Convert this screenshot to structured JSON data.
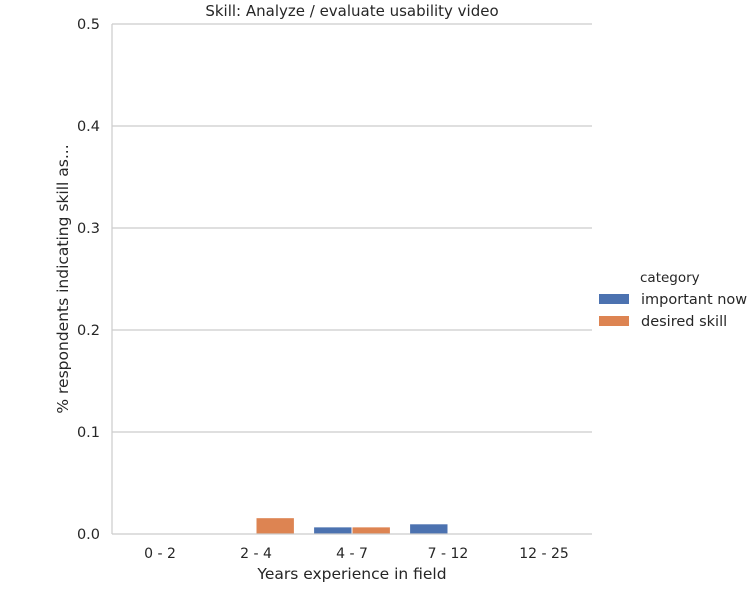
{
  "chart_data": {
    "type": "bar",
    "title": "Skill: Analyze / evaluate usability video",
    "xlabel": "Years experience in field",
    "ylabel": "% respondents indicating skill as...",
    "categories": [
      "0 - 2",
      "2 - 4",
      "4 - 7",
      "7 - 12",
      "12 - 25"
    ],
    "series": [
      {
        "name": "important now",
        "color": "#4c72b0",
        "values": [
          0.0,
          0.0,
          0.007,
          0.01,
          0.0
        ]
      },
      {
        "name": "desired skill",
        "color": "#dd8452",
        "values": [
          0.0,
          0.016,
          0.007,
          0.0,
          0.0
        ]
      }
    ],
    "ylim": [
      0,
      0.5
    ],
    "yticks": [
      0.0,
      0.1,
      0.2,
      0.3,
      0.4,
      0.5
    ],
    "ytick_labels": [
      "0.0",
      "0.1",
      "0.2",
      "0.3",
      "0.4",
      "0.5"
    ],
    "grid": true,
    "legend_title": "category",
    "legend_position": "right"
  }
}
